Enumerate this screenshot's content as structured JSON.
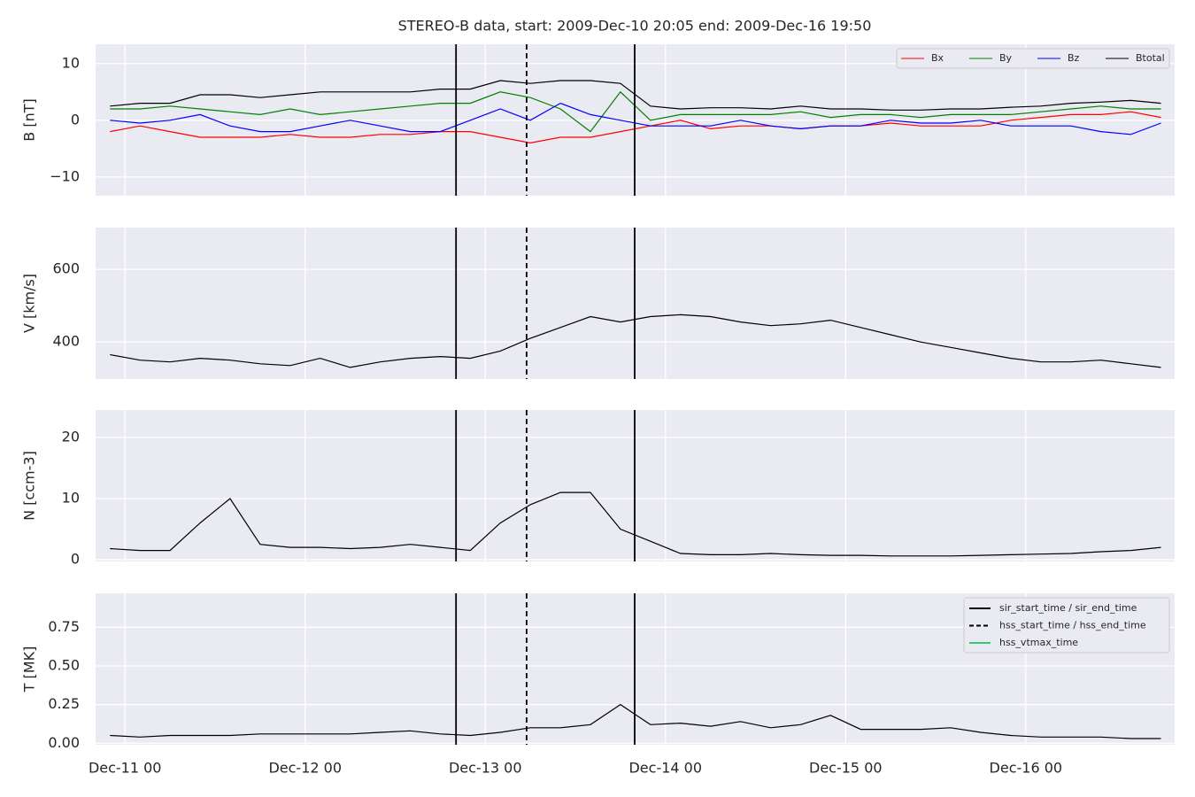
{
  "chart_data": [
    {
      "type": "line",
      "title": "STEREO-B data, start: 2009-Dec-10 20:05  end: 2009-Dec-16 19:50",
      "ylabel": "B [nT]",
      "x": [
        "2009-12-10 22:00",
        "2009-12-11 02:00",
        "2009-12-11 06:00",
        "2009-12-11 10:00",
        "2009-12-11 14:00",
        "2009-12-11 18:00",
        "2009-12-11 22:00",
        "2009-12-12 02:00",
        "2009-12-12 06:00",
        "2009-12-12 10:00",
        "2009-12-12 14:00",
        "2009-12-12 18:00",
        "2009-12-12 22:00",
        "2009-12-13 02:00",
        "2009-12-13 06:00",
        "2009-12-13 10:00",
        "2009-12-13 14:00",
        "2009-12-13 18:00",
        "2009-12-13 22:00",
        "2009-12-14 02:00",
        "2009-12-14 06:00",
        "2009-12-14 10:00",
        "2009-12-14 14:00",
        "2009-12-14 18:00",
        "2009-12-14 22:00",
        "2009-12-15 02:00",
        "2009-12-15 06:00",
        "2009-12-15 10:00",
        "2009-12-15 14:00",
        "2009-12-15 18:00",
        "2009-12-15 22:00",
        "2009-12-16 02:00",
        "2009-12-16 06:00",
        "2009-12-16 10:00",
        "2009-12-16 14:00",
        "2009-12-16 18:00"
      ],
      "xlim": [
        "2009-12-10 20:05",
        "2009-12-16 19:50"
      ],
      "ylim": [
        -13.3,
        13.4
      ],
      "yticks": [
        {
          "value": -10,
          "label": "−10"
        },
        0,
        10
      ],
      "grid": true,
      "legend": "upper right",
      "series": [
        {
          "name": "Bx",
          "color": "#ff0000",
          "values": [
            -2,
            -1,
            -2,
            -3,
            -3,
            -3,
            -2.5,
            -3,
            -3,
            -2.5,
            -2.5,
            -2,
            -2,
            -3,
            -4,
            -3,
            -3,
            -2,
            -1,
            0,
            -1.5,
            -1,
            -1,
            -1.5,
            -1,
            -1,
            -0.5,
            -1,
            -1,
            -1,
            0,
            0.5,
            1,
            1,
            1.5,
            0.5
          ]
        },
        {
          "name": "By",
          "color": "#008000",
          "values": [
            2,
            2,
            2.5,
            2,
            1.5,
            1,
            2,
            1,
            1.5,
            2,
            2.5,
            3,
            3,
            5,
            4,
            2,
            -2,
            5,
            0,
            1,
            1,
            1,
            1,
            1.5,
            0.5,
            1,
            1,
            0.5,
            1,
            1,
            1,
            1.5,
            2,
            2.5,
            2,
            2
          ]
        },
        {
          "name": "Bz",
          "color": "#0000ff",
          "values": [
            0,
            -0.5,
            0,
            1,
            -1,
            -2,
            -2,
            -1,
            0,
            -1,
            -2,
            -2,
            0,
            2,
            0,
            3,
            1,
            0,
            -1,
            -1,
            -1,
            0,
            -1,
            -1.5,
            -1,
            -1,
            0,
            -0.5,
            -0.5,
            0,
            -1,
            -1,
            -1,
            -2,
            -2.5,
            -0.5
          ]
        },
        {
          "name": "Btotal",
          "color": "#000000",
          "values": [
            2.5,
            3,
            3,
            4.5,
            4.5,
            4,
            4.5,
            5,
            5,
            5,
            5,
            5.5,
            5.5,
            7,
            6.5,
            7,
            7,
            6.5,
            2.5,
            2,
            2.2,
            2.2,
            2,
            2.5,
            2,
            2,
            1.8,
            1.8,
            2,
            2,
            2.3,
            2.5,
            3,
            3.2,
            3.5,
            3
          ]
        }
      ]
    },
    {
      "type": "line",
      "ylabel": "V [km/s]",
      "x": [
        "2009-12-10 22:00",
        "2009-12-11 02:00",
        "2009-12-11 06:00",
        "2009-12-11 10:00",
        "2009-12-11 14:00",
        "2009-12-11 18:00",
        "2009-12-11 22:00",
        "2009-12-12 02:00",
        "2009-12-12 06:00",
        "2009-12-12 10:00",
        "2009-12-12 14:00",
        "2009-12-12 18:00",
        "2009-12-12 22:00",
        "2009-12-13 02:00",
        "2009-12-13 06:00",
        "2009-12-13 10:00",
        "2009-12-13 14:00",
        "2009-12-13 18:00",
        "2009-12-13 22:00",
        "2009-12-14 02:00",
        "2009-12-14 06:00",
        "2009-12-14 10:00",
        "2009-12-14 14:00",
        "2009-12-14 18:00",
        "2009-12-14 22:00",
        "2009-12-15 02:00",
        "2009-12-15 06:00",
        "2009-12-15 10:00",
        "2009-12-15 14:00",
        "2009-12-15 18:00",
        "2009-12-15 22:00",
        "2009-12-16 02:00",
        "2009-12-16 06:00",
        "2009-12-16 10:00",
        "2009-12-16 14:00",
        "2009-12-16 18:00"
      ],
      "xlim": [
        "2009-12-10 20:05",
        "2009-12-16 19:50"
      ],
      "ylim": [
        298,
        715
      ],
      "yticks": [
        400,
        600
      ],
      "grid": true,
      "series": [
        {
          "name": "V",
          "color": "#000000",
          "values": [
            365,
            350,
            345,
            355,
            350,
            340,
            335,
            355,
            330,
            345,
            355,
            360,
            355,
            375,
            410,
            440,
            470,
            455,
            470,
            475,
            470,
            455,
            445,
            450,
            460,
            440,
            420,
            400,
            385,
            370,
            355,
            345,
            345,
            350,
            340,
            330
          ]
        }
      ]
    },
    {
      "type": "line",
      "ylabel": "N [ccm-3]",
      "x": [
        "2009-12-10 22:00",
        "2009-12-11 02:00",
        "2009-12-11 06:00",
        "2009-12-11 10:00",
        "2009-12-11 14:00",
        "2009-12-11 18:00",
        "2009-12-11 22:00",
        "2009-12-12 02:00",
        "2009-12-12 06:00",
        "2009-12-12 10:00",
        "2009-12-12 14:00",
        "2009-12-12 18:00",
        "2009-12-12 22:00",
        "2009-12-13 02:00",
        "2009-12-13 06:00",
        "2009-12-13 10:00",
        "2009-12-13 14:00",
        "2009-12-13 18:00",
        "2009-12-13 22:00",
        "2009-12-14 02:00",
        "2009-12-14 06:00",
        "2009-12-14 10:00",
        "2009-12-14 14:00",
        "2009-12-14 18:00",
        "2009-12-14 22:00",
        "2009-12-15 02:00",
        "2009-12-15 06:00",
        "2009-12-15 10:00",
        "2009-12-15 14:00",
        "2009-12-15 18:00",
        "2009-12-15 22:00",
        "2009-12-16 02:00",
        "2009-12-16 06:00",
        "2009-12-16 10:00",
        "2009-12-16 14:00",
        "2009-12-16 18:00"
      ],
      "xlim": [
        "2009-12-10 20:05",
        "2009-12-16 19:50"
      ],
      "ylim": [
        -0.3,
        24.5
      ],
      "yticks": [
        0,
        10,
        20
      ],
      "grid": true,
      "series": [
        {
          "name": "N",
          "color": "#000000",
          "values": [
            1.8,
            1.5,
            1.5,
            6,
            10,
            2.5,
            2,
            2,
            1.8,
            2,
            2.5,
            2,
            1.5,
            6,
            9,
            11,
            11,
            5,
            3,
            1,
            0.8,
            0.8,
            1,
            0.8,
            0.7,
            0.7,
            0.6,
            0.6,
            0.6,
            0.7,
            0.8,
            0.9,
            1,
            1.3,
            1.5,
            2
          ]
        }
      ]
    },
    {
      "type": "line",
      "ylabel": "T [MK]",
      "x": [
        "2009-12-10 22:00",
        "2009-12-11 02:00",
        "2009-12-11 06:00",
        "2009-12-11 10:00",
        "2009-12-11 14:00",
        "2009-12-11 18:00",
        "2009-12-11 22:00",
        "2009-12-12 02:00",
        "2009-12-12 06:00",
        "2009-12-12 10:00",
        "2009-12-12 14:00",
        "2009-12-12 18:00",
        "2009-12-12 22:00",
        "2009-12-13 02:00",
        "2009-12-13 06:00",
        "2009-12-13 10:00",
        "2009-12-13 14:00",
        "2009-12-13 18:00",
        "2009-12-13 22:00",
        "2009-12-14 02:00",
        "2009-12-14 06:00",
        "2009-12-14 10:00",
        "2009-12-14 14:00",
        "2009-12-14 18:00",
        "2009-12-14 22:00",
        "2009-12-15 02:00",
        "2009-12-15 06:00",
        "2009-12-15 10:00",
        "2009-12-15 14:00",
        "2009-12-15 18:00",
        "2009-12-15 22:00",
        "2009-12-16 02:00",
        "2009-12-16 06:00",
        "2009-12-16 10:00",
        "2009-12-16 14:00",
        "2009-12-16 18:00"
      ],
      "xlim": [
        "2009-12-10 20:05",
        "2009-12-16 19:50"
      ],
      "xticks": [
        {
          "value": "2009-12-11 00:00",
          "label": "Dec-11 00"
        },
        {
          "value": "2009-12-12 00:00",
          "label": "Dec-12 00"
        },
        {
          "value": "2009-12-13 00:00",
          "label": "Dec-13 00"
        },
        {
          "value": "2009-12-14 00:00",
          "label": "Dec-14 00"
        },
        {
          "value": "2009-12-15 00:00",
          "label": "Dec-15 00"
        },
        {
          "value": "2009-12-16 00:00",
          "label": "Dec-16 00"
        }
      ],
      "ylim": [
        -0.01,
        0.97
      ],
      "yticks": [
        {
          "value": 0,
          "label": "0.00"
        },
        {
          "value": 0.25,
          "label": "0.25"
        },
        {
          "value": 0.5,
          "label": "0.50"
        },
        {
          "value": 0.75,
          "label": "0.75"
        }
      ],
      "grid": true,
      "legend": "upper right",
      "series": [
        {
          "name": "T",
          "color": "#000000",
          "values": [
            0.05,
            0.04,
            0.05,
            0.05,
            0.05,
            0.06,
            0.06,
            0.06,
            0.06,
            0.07,
            0.08,
            0.06,
            0.05,
            0.07,
            0.1,
            0.1,
            0.12,
            0.25,
            0.12,
            0.13,
            0.11,
            0.14,
            0.1,
            0.12,
            0.18,
            0.09,
            0.09,
            0.09,
            0.1,
            0.07,
            0.05,
            0.04,
            0.04,
            0.04,
            0.03,
            0.03
          ]
        }
      ],
      "event_lines": [
        {
          "name": "sir_start_time / sir_end_time",
          "color": "#000000",
          "style": "solid",
          "times": [
            "2009-12-12 20:06",
            "2009-12-13 19:54"
          ]
        },
        {
          "name": "hss_start_time / hss_end_time",
          "color": "#000000",
          "style": "dashed",
          "times": [
            "2009-12-13 05:30"
          ]
        },
        {
          "name": "hss_vtmax_time",
          "color": "#2ecc71",
          "style": "solid",
          "times": []
        }
      ]
    }
  ]
}
